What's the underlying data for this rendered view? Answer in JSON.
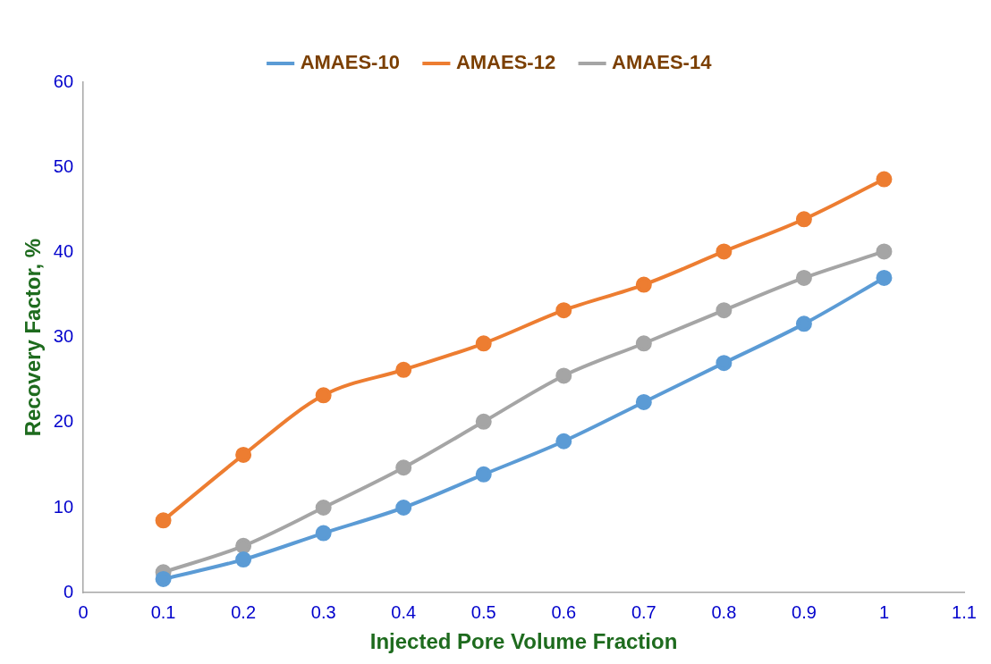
{
  "chart_data": {
    "type": "line",
    "xlabel": "Injected Pore Volume Fraction",
    "ylabel": "Recovery Factor, %",
    "x": [
      0.1,
      0.2,
      0.3,
      0.4,
      0.5,
      0.6,
      0.7,
      0.8,
      0.9,
      1
    ],
    "series": [
      {
        "name": "AMAES-10",
        "color": "#5b9bd5",
        "values": [
          1.6,
          3.9,
          7.0,
          10.0,
          13.9,
          17.8,
          22.4,
          27.0,
          31.6,
          37.0
        ]
      },
      {
        "name": "AMAES-12",
        "color": "#ed7d31",
        "values": [
          8.5,
          16.2,
          23.2,
          26.2,
          29.3,
          33.2,
          36.2,
          40.1,
          43.9,
          48.6
        ]
      },
      {
        "name": "AMAES-14",
        "color": "#a5a5a5",
        "values": [
          2.4,
          5.5,
          10.0,
          14.7,
          20.1,
          25.5,
          29.3,
          33.2,
          37.0,
          40.1
        ]
      }
    ],
    "xlim": [
      0,
      1.1
    ],
    "xticks": [
      0,
      0.1,
      0.2,
      0.3,
      0.4,
      0.5,
      0.6,
      0.7,
      0.8,
      0.9,
      1,
      1.1
    ],
    "ylim": [
      0,
      60
    ],
    "yticks": [
      0,
      10,
      20,
      30,
      40,
      50,
      60
    ],
    "grid": false,
    "legend": "top",
    "marker": "circle",
    "line_style": "solid"
  }
}
